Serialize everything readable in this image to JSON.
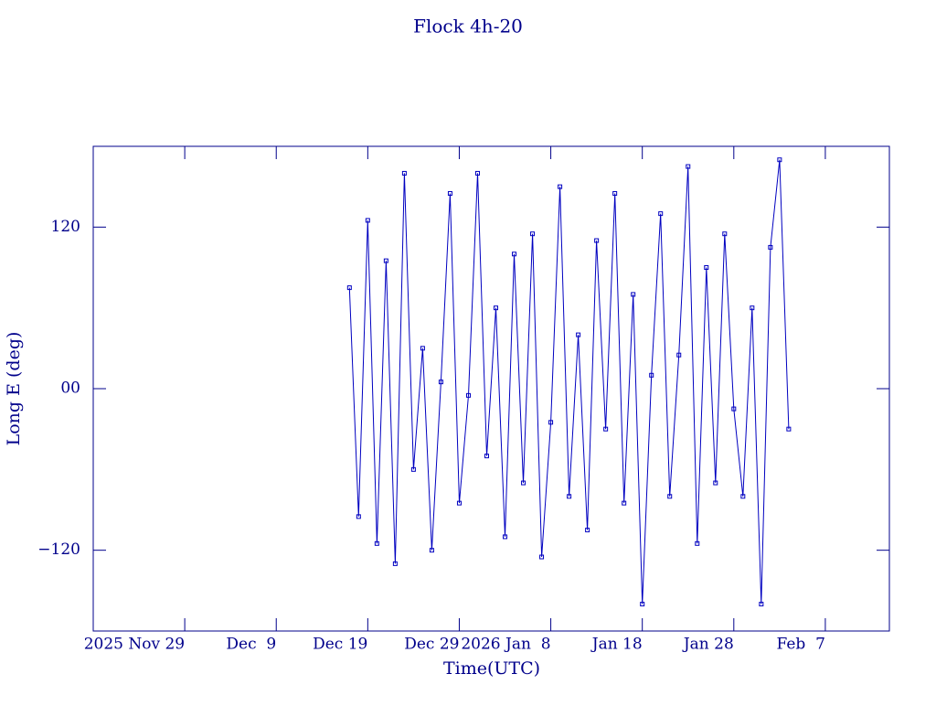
{
  "chart_data": {
    "type": "line",
    "title": "Flock 4h-20",
    "x_label": "Time(UTC)",
    "y_label": "Long E (deg)",
    "xlim": [
      "2025-11-19",
      "2026-02-14"
    ],
    "xticks": [
      {
        "value": "2025-11-29",
        "label": "2025 Nov 29"
      },
      {
        "value": "2025-12-09",
        "label": "Dec  9"
      },
      {
        "value": "2025-12-19",
        "label": "Dec 19"
      },
      {
        "value": "2025-12-29",
        "label": "Dec 29"
      },
      {
        "value": "2026-01-08",
        "label": "2026 Jan  8"
      },
      {
        "value": "2026-01-18",
        "label": "Jan 18"
      },
      {
        "value": "2026-01-28",
        "label": "Jan 28"
      },
      {
        "value": "2026-02-07",
        "label": "Feb  7"
      }
    ],
    "ylim": [
      -180,
      180
    ],
    "yticks": [
      {
        "value": -120,
        "label": "−120"
      },
      {
        "value": 0,
        "label": "00"
      },
      120
    ],
    "series": [
      {
        "name": "Flock 4h-20",
        "color": "#0000c0",
        "x": [
          "2025-12-17",
          "2025-12-18",
          "2025-12-19",
          "2025-12-20",
          "2025-12-21",
          "2025-12-22",
          "2025-12-23",
          "2025-12-24",
          "2025-12-25",
          "2025-12-26",
          "2025-12-27",
          "2025-12-28",
          "2025-12-29",
          "2025-12-30",
          "2025-12-31",
          "2026-01-01",
          "2026-01-02",
          "2026-01-03",
          "2026-01-04",
          "2026-01-05",
          "2026-01-06",
          "2026-01-07",
          "2026-01-08",
          "2026-01-09",
          "2026-01-10",
          "2026-01-11",
          "2026-01-12",
          "2026-01-13",
          "2026-01-14",
          "2026-01-15",
          "2026-01-16",
          "2026-01-17",
          "2026-01-18",
          "2026-01-19",
          "2026-01-20",
          "2026-01-21",
          "2026-01-22",
          "2026-01-23",
          "2026-01-24",
          "2026-01-25",
          "2026-01-26",
          "2026-01-27",
          "2026-01-28",
          "2026-01-29",
          "2026-01-30",
          "2026-01-31",
          "2026-02-01",
          "2026-02-02",
          "2026-02-03"
        ],
        "values": [
          75,
          -95,
          125,
          -115,
          95,
          -130,
          160,
          -60,
          30,
          -120,
          5,
          145,
          -85,
          -5,
          160,
          -50,
          60,
          -110,
          100,
          -70,
          115,
          -125,
          -25,
          150,
          -80,
          40,
          -105,
          110,
          -30,
          145,
          -85,
          70,
          -160,
          10,
          130,
          -80,
          25,
          165,
          -115,
          90,
          -70,
          115,
          -15,
          -80,
          60,
          -160,
          105,
          170,
          -30
        ]
      }
    ]
  }
}
